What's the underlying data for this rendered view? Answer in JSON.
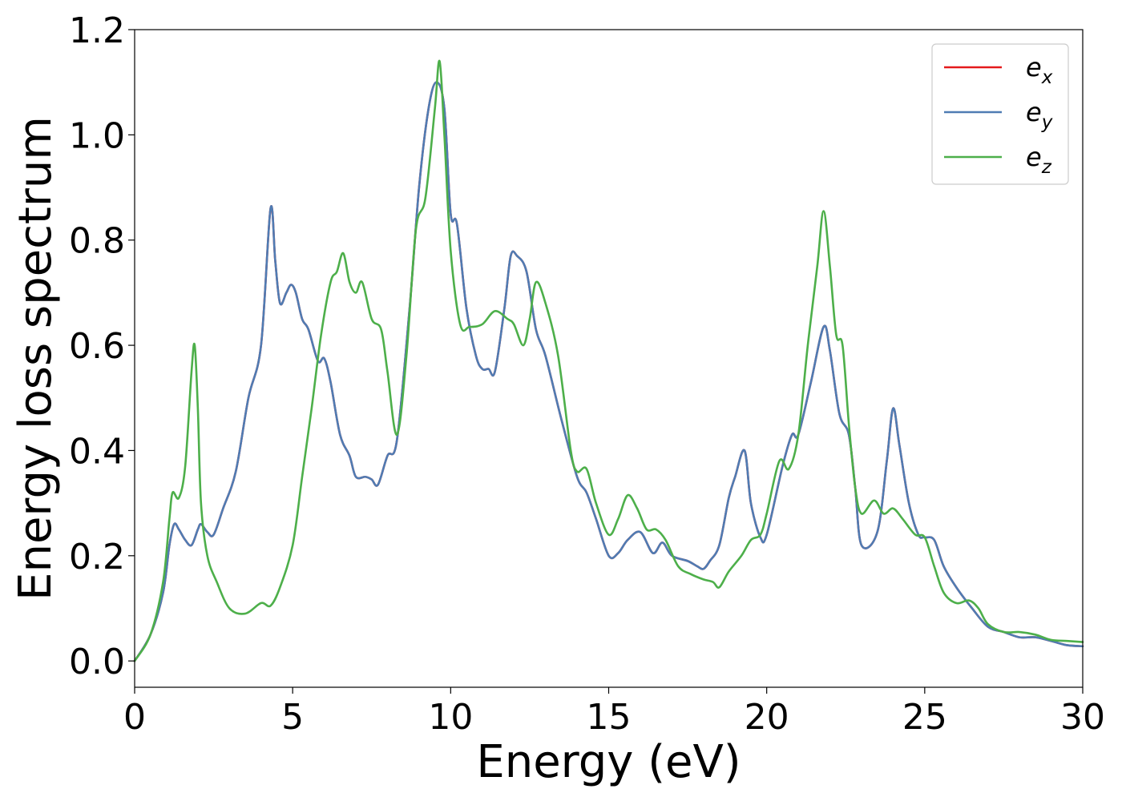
{
  "chart_data": {
    "type": "line",
    "xlabel": "Energy (eV)",
    "ylabel": "Energy loss spectrum",
    "xlim": [
      0,
      30
    ],
    "ylim": [
      -0.05,
      1.2
    ],
    "xticks": [
      0,
      5,
      10,
      15,
      20,
      25,
      30
    ],
    "yticks": [
      0.0,
      0.2,
      0.4,
      0.6,
      0.8,
      1.0,
      1.2
    ],
    "xtick_labels": [
      "0",
      "5",
      "10",
      "15",
      "20",
      "25",
      "30"
    ],
    "ytick_labels": [
      "0.0",
      "0.2",
      "0.4",
      "0.6",
      "0.8",
      "1.0",
      "1.2"
    ],
    "grid": false,
    "legend_position": "top-right",
    "series": [
      {
        "name": "e_x",
        "legend_base": "e",
        "legend_sub": "x",
        "color": "#e41a1c",
        "points": [
          [
            0,
            0.0
          ],
          [
            0.5,
            0.05
          ],
          [
            0.9,
            0.13
          ],
          [
            1.1,
            0.22
          ],
          [
            1.25,
            0.26
          ],
          [
            1.4,
            0.25
          ],
          [
            1.6,
            0.23
          ],
          [
            1.8,
            0.22
          ],
          [
            2.0,
            0.25
          ],
          [
            2.1,
            0.26
          ],
          [
            2.3,
            0.245
          ],
          [
            2.5,
            0.24
          ],
          [
            2.8,
            0.29
          ],
          [
            3.2,
            0.36
          ],
          [
            3.6,
            0.5
          ],
          [
            4.0,
            0.6
          ],
          [
            4.3,
            0.86
          ],
          [
            4.45,
            0.76
          ],
          [
            4.6,
            0.68
          ],
          [
            4.8,
            0.7
          ],
          [
            4.95,
            0.715
          ],
          [
            5.1,
            0.7
          ],
          [
            5.3,
            0.65
          ],
          [
            5.5,
            0.63
          ],
          [
            5.8,
            0.57
          ],
          [
            6.0,
            0.575
          ],
          [
            6.2,
            0.53
          ],
          [
            6.5,
            0.43
          ],
          [
            6.8,
            0.39
          ],
          [
            7.0,
            0.35
          ],
          [
            7.3,
            0.35
          ],
          [
            7.5,
            0.345
          ],
          [
            7.7,
            0.335
          ],
          [
            8.0,
            0.39
          ],
          [
            8.3,
            0.42
          ],
          [
            8.7,
            0.67
          ],
          [
            9.0,
            0.9
          ],
          [
            9.3,
            1.05
          ],
          [
            9.55,
            1.1
          ],
          [
            9.8,
            1.05
          ],
          [
            10.0,
            0.85
          ],
          [
            10.2,
            0.83
          ],
          [
            10.5,
            0.67
          ],
          [
            10.8,
            0.58
          ],
          [
            11.0,
            0.555
          ],
          [
            11.2,
            0.555
          ],
          [
            11.4,
            0.55
          ],
          [
            11.7,
            0.67
          ],
          [
            11.9,
            0.77
          ],
          [
            12.1,
            0.77
          ],
          [
            12.4,
            0.74
          ],
          [
            12.7,
            0.63
          ],
          [
            13.0,
            0.58
          ],
          [
            13.5,
            0.46
          ],
          [
            14.0,
            0.35
          ],
          [
            14.3,
            0.32
          ],
          [
            14.6,
            0.27
          ],
          [
            15.0,
            0.2
          ],
          [
            15.3,
            0.205
          ],
          [
            15.6,
            0.23
          ],
          [
            16.0,
            0.245
          ],
          [
            16.4,
            0.205
          ],
          [
            16.7,
            0.225
          ],
          [
            17.0,
            0.2
          ],
          [
            17.5,
            0.19
          ],
          [
            17.8,
            0.18
          ],
          [
            18.0,
            0.175
          ],
          [
            18.2,
            0.19
          ],
          [
            18.5,
            0.22
          ],
          [
            18.8,
            0.31
          ],
          [
            19.0,
            0.35
          ],
          [
            19.3,
            0.4
          ],
          [
            19.5,
            0.3
          ],
          [
            19.8,
            0.235
          ],
          [
            20.0,
            0.24
          ],
          [
            20.5,
            0.37
          ],
          [
            20.8,
            0.43
          ],
          [
            21.0,
            0.43
          ],
          [
            21.4,
            0.53
          ],
          [
            21.8,
            0.635
          ],
          [
            22.0,
            0.59
          ],
          [
            22.3,
            0.47
          ],
          [
            22.6,
            0.43
          ],
          [
            22.8,
            0.33
          ],
          [
            23.0,
            0.22
          ],
          [
            23.5,
            0.245
          ],
          [
            23.8,
            0.38
          ],
          [
            24.0,
            0.48
          ],
          [
            24.2,
            0.41
          ],
          [
            24.5,
            0.3
          ],
          [
            24.8,
            0.24
          ],
          [
            25.0,
            0.235
          ],
          [
            25.3,
            0.23
          ],
          [
            25.6,
            0.18
          ],
          [
            26.0,
            0.14
          ],
          [
            26.5,
            0.1
          ],
          [
            27.0,
            0.065
          ],
          [
            27.5,
            0.055
          ],
          [
            28.0,
            0.045
          ],
          [
            28.5,
            0.045
          ],
          [
            29.0,
            0.038
          ],
          [
            29.5,
            0.03
          ],
          [
            30.0,
            0.028
          ]
        ]
      },
      {
        "name": "e_y",
        "legend_base": "e",
        "legend_sub": "y",
        "color": "#4f7cb3",
        "points": [
          [
            0,
            0.0
          ],
          [
            0.5,
            0.05
          ],
          [
            0.9,
            0.13
          ],
          [
            1.1,
            0.22
          ],
          [
            1.25,
            0.26
          ],
          [
            1.4,
            0.25
          ],
          [
            1.6,
            0.23
          ],
          [
            1.8,
            0.22
          ],
          [
            2.0,
            0.25
          ],
          [
            2.1,
            0.26
          ],
          [
            2.3,
            0.245
          ],
          [
            2.5,
            0.24
          ],
          [
            2.8,
            0.29
          ],
          [
            3.2,
            0.36
          ],
          [
            3.6,
            0.5
          ],
          [
            4.0,
            0.6
          ],
          [
            4.3,
            0.86
          ],
          [
            4.45,
            0.76
          ],
          [
            4.6,
            0.68
          ],
          [
            4.8,
            0.7
          ],
          [
            4.95,
            0.715
          ],
          [
            5.1,
            0.7
          ],
          [
            5.3,
            0.65
          ],
          [
            5.5,
            0.63
          ],
          [
            5.8,
            0.57
          ],
          [
            6.0,
            0.575
          ],
          [
            6.2,
            0.53
          ],
          [
            6.5,
            0.43
          ],
          [
            6.8,
            0.39
          ],
          [
            7.0,
            0.35
          ],
          [
            7.3,
            0.35
          ],
          [
            7.5,
            0.345
          ],
          [
            7.7,
            0.335
          ],
          [
            8.0,
            0.39
          ],
          [
            8.3,
            0.42
          ],
          [
            8.7,
            0.67
          ],
          [
            9.0,
            0.9
          ],
          [
            9.3,
            1.05
          ],
          [
            9.55,
            1.1
          ],
          [
            9.8,
            1.05
          ],
          [
            10.0,
            0.85
          ],
          [
            10.2,
            0.83
          ],
          [
            10.5,
            0.67
          ],
          [
            10.8,
            0.58
          ],
          [
            11.0,
            0.555
          ],
          [
            11.2,
            0.555
          ],
          [
            11.4,
            0.55
          ],
          [
            11.7,
            0.67
          ],
          [
            11.9,
            0.77
          ],
          [
            12.1,
            0.77
          ],
          [
            12.4,
            0.74
          ],
          [
            12.7,
            0.63
          ],
          [
            13.0,
            0.58
          ],
          [
            13.5,
            0.46
          ],
          [
            14.0,
            0.35
          ],
          [
            14.3,
            0.32
          ],
          [
            14.6,
            0.27
          ],
          [
            15.0,
            0.2
          ],
          [
            15.3,
            0.205
          ],
          [
            15.6,
            0.23
          ],
          [
            16.0,
            0.245
          ],
          [
            16.4,
            0.205
          ],
          [
            16.7,
            0.225
          ],
          [
            17.0,
            0.2
          ],
          [
            17.5,
            0.19
          ],
          [
            17.8,
            0.18
          ],
          [
            18.0,
            0.175
          ],
          [
            18.2,
            0.19
          ],
          [
            18.5,
            0.22
          ],
          [
            18.8,
            0.31
          ],
          [
            19.0,
            0.35
          ],
          [
            19.3,
            0.4
          ],
          [
            19.5,
            0.3
          ],
          [
            19.8,
            0.235
          ],
          [
            20.0,
            0.24
          ],
          [
            20.5,
            0.37
          ],
          [
            20.8,
            0.43
          ],
          [
            21.0,
            0.43
          ],
          [
            21.4,
            0.53
          ],
          [
            21.8,
            0.635
          ],
          [
            22.0,
            0.59
          ],
          [
            22.3,
            0.47
          ],
          [
            22.6,
            0.43
          ],
          [
            22.8,
            0.33
          ],
          [
            23.0,
            0.22
          ],
          [
            23.5,
            0.245
          ],
          [
            23.8,
            0.38
          ],
          [
            24.0,
            0.48
          ],
          [
            24.2,
            0.41
          ],
          [
            24.5,
            0.3
          ],
          [
            24.8,
            0.24
          ],
          [
            25.0,
            0.235
          ],
          [
            25.3,
            0.23
          ],
          [
            25.6,
            0.18
          ],
          [
            26.0,
            0.14
          ],
          [
            26.5,
            0.1
          ],
          [
            27.0,
            0.065
          ],
          [
            27.5,
            0.055
          ],
          [
            28.0,
            0.045
          ],
          [
            28.5,
            0.045
          ],
          [
            29.0,
            0.038
          ],
          [
            29.5,
            0.03
          ],
          [
            30.0,
            0.028
          ]
        ]
      },
      {
        "name": "e_z",
        "legend_base": "e",
        "legend_sub": "z",
        "color": "#4daf4a",
        "points": [
          [
            0,
            0.0
          ],
          [
            0.5,
            0.05
          ],
          [
            0.9,
            0.15
          ],
          [
            1.1,
            0.27
          ],
          [
            1.2,
            0.32
          ],
          [
            1.4,
            0.31
          ],
          [
            1.6,
            0.37
          ],
          [
            1.8,
            0.55
          ],
          [
            1.9,
            0.6
          ],
          [
            2.0,
            0.48
          ],
          [
            2.1,
            0.3
          ],
          [
            2.3,
            0.2
          ],
          [
            2.6,
            0.15
          ],
          [
            3.0,
            0.1
          ],
          [
            3.5,
            0.09
          ],
          [
            4.0,
            0.11
          ],
          [
            4.3,
            0.105
          ],
          [
            4.6,
            0.14
          ],
          [
            5.0,
            0.22
          ],
          [
            5.3,
            0.35
          ],
          [
            5.6,
            0.48
          ],
          [
            5.9,
            0.62
          ],
          [
            6.2,
            0.72
          ],
          [
            6.4,
            0.74
          ],
          [
            6.6,
            0.775
          ],
          [
            6.8,
            0.72
          ],
          [
            7.0,
            0.7
          ],
          [
            7.2,
            0.72
          ],
          [
            7.5,
            0.65
          ],
          [
            7.8,
            0.63
          ],
          [
            8.0,
            0.55
          ],
          [
            8.3,
            0.43
          ],
          [
            8.6,
            0.58
          ],
          [
            8.9,
            0.82
          ],
          [
            9.2,
            0.88
          ],
          [
            9.5,
            1.05
          ],
          [
            9.65,
            1.14
          ],
          [
            9.8,
            1.0
          ],
          [
            10.0,
            0.78
          ],
          [
            10.3,
            0.64
          ],
          [
            10.6,
            0.635
          ],
          [
            11.0,
            0.64
          ],
          [
            11.4,
            0.665
          ],
          [
            11.8,
            0.65
          ],
          [
            12.0,
            0.64
          ],
          [
            12.3,
            0.6
          ],
          [
            12.5,
            0.65
          ],
          [
            12.7,
            0.72
          ],
          [
            13.0,
            0.68
          ],
          [
            13.4,
            0.58
          ],
          [
            13.8,
            0.4
          ],
          [
            14.0,
            0.36
          ],
          [
            14.3,
            0.365
          ],
          [
            14.6,
            0.3
          ],
          [
            15.0,
            0.24
          ],
          [
            15.3,
            0.27
          ],
          [
            15.6,
            0.315
          ],
          [
            15.9,
            0.29
          ],
          [
            16.2,
            0.25
          ],
          [
            16.5,
            0.25
          ],
          [
            16.8,
            0.23
          ],
          [
            17.2,
            0.18
          ],
          [
            17.6,
            0.165
          ],
          [
            18.0,
            0.155
          ],
          [
            18.3,
            0.15
          ],
          [
            18.5,
            0.14
          ],
          [
            18.8,
            0.17
          ],
          [
            19.2,
            0.2
          ],
          [
            19.5,
            0.23
          ],
          [
            19.8,
            0.24
          ],
          [
            20.0,
            0.28
          ],
          [
            20.4,
            0.38
          ],
          [
            20.7,
            0.365
          ],
          [
            21.0,
            0.43
          ],
          [
            21.3,
            0.6
          ],
          [
            21.6,
            0.75
          ],
          [
            21.8,
            0.855
          ],
          [
            22.0,
            0.75
          ],
          [
            22.2,
            0.62
          ],
          [
            22.4,
            0.6
          ],
          [
            22.6,
            0.45
          ],
          [
            22.8,
            0.33
          ],
          [
            23.0,
            0.28
          ],
          [
            23.4,
            0.305
          ],
          [
            23.7,
            0.28
          ],
          [
            24.0,
            0.29
          ],
          [
            24.3,
            0.27
          ],
          [
            24.7,
            0.24
          ],
          [
            25.0,
            0.235
          ],
          [
            25.3,
            0.18
          ],
          [
            25.6,
            0.13
          ],
          [
            26.0,
            0.11
          ],
          [
            26.4,
            0.115
          ],
          [
            26.7,
            0.1
          ],
          [
            27.0,
            0.07
          ],
          [
            27.5,
            0.055
          ],
          [
            28.0,
            0.055
          ],
          [
            28.5,
            0.05
          ],
          [
            29.0,
            0.04
          ],
          [
            29.5,
            0.038
          ],
          [
            30.0,
            0.036
          ]
        ]
      }
    ]
  }
}
